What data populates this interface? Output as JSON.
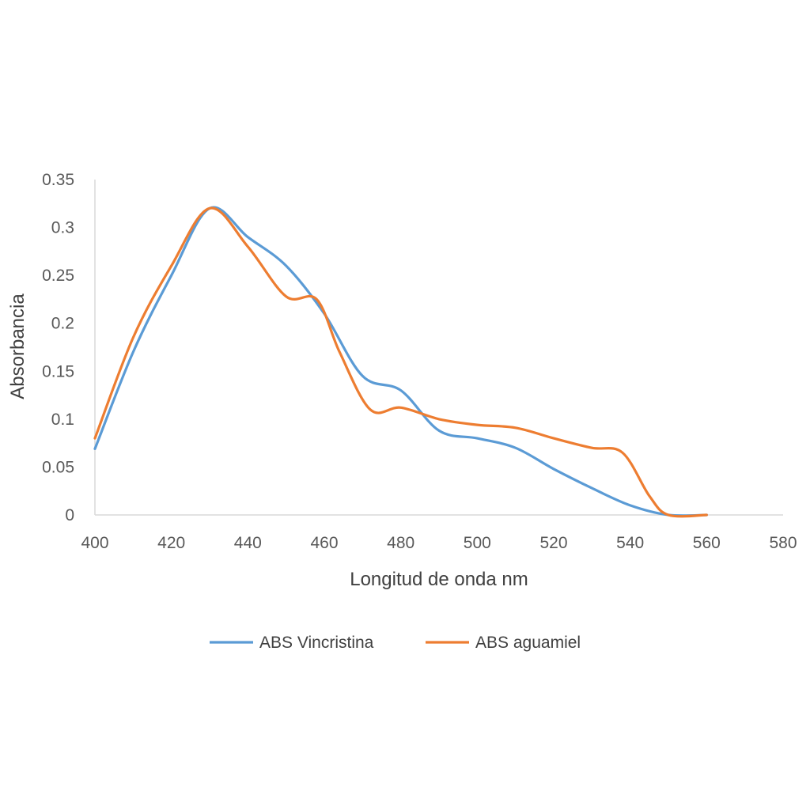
{
  "chart_data": {
    "type": "line",
    "title": "",
    "xlabel": "Longitud de onda nm",
    "ylabel": "Absorbancia",
    "xlim": [
      400,
      580
    ],
    "ylim": [
      0,
      0.35
    ],
    "x_ticks": [
      400,
      420,
      440,
      460,
      480,
      500,
      520,
      540,
      560,
      580
    ],
    "y_ticks": [
      0,
      0.05,
      0.1,
      0.15,
      0.2,
      0.25,
      0.3,
      0.35
    ],
    "x_tick_labels": [
      "400",
      "420",
      "440",
      "460",
      "480",
      "500",
      "520",
      "540",
      "560",
      "580"
    ],
    "y_tick_labels": [
      "0",
      "0.05",
      "0.1",
      "0.15",
      "0.2",
      "0.25",
      "0.3",
      "0.35"
    ],
    "grid": false,
    "legend_position": "bottom",
    "series": [
      {
        "name": "ABS Vincristina",
        "color": "#5B9BD5",
        "x": [
          400,
          410,
          420,
          430,
          440,
          450,
          460,
          470,
          480,
          490,
          500,
          510,
          520,
          530,
          540,
          550,
          560
        ],
        "y": [
          0.069,
          0.17,
          0.25,
          0.32,
          0.29,
          0.26,
          0.21,
          0.145,
          0.13,
          0.088,
          0.08,
          0.07,
          0.048,
          0.028,
          0.01,
          0.0,
          0.0
        ]
      },
      {
        "name": "ABS aguamiel",
        "color": "#ED7D31",
        "x": [
          400,
          410,
          420,
          430,
          440,
          450,
          458,
          464,
          472,
          480,
          490,
          500,
          510,
          520,
          530,
          538,
          545,
          550,
          560
        ],
        "y": [
          0.08,
          0.185,
          0.26,
          0.32,
          0.28,
          0.228,
          0.225,
          0.17,
          0.11,
          0.112,
          0.1,
          0.094,
          0.091,
          0.08,
          0.07,
          0.065,
          0.02,
          0.0,
          0.0
        ]
      }
    ]
  }
}
